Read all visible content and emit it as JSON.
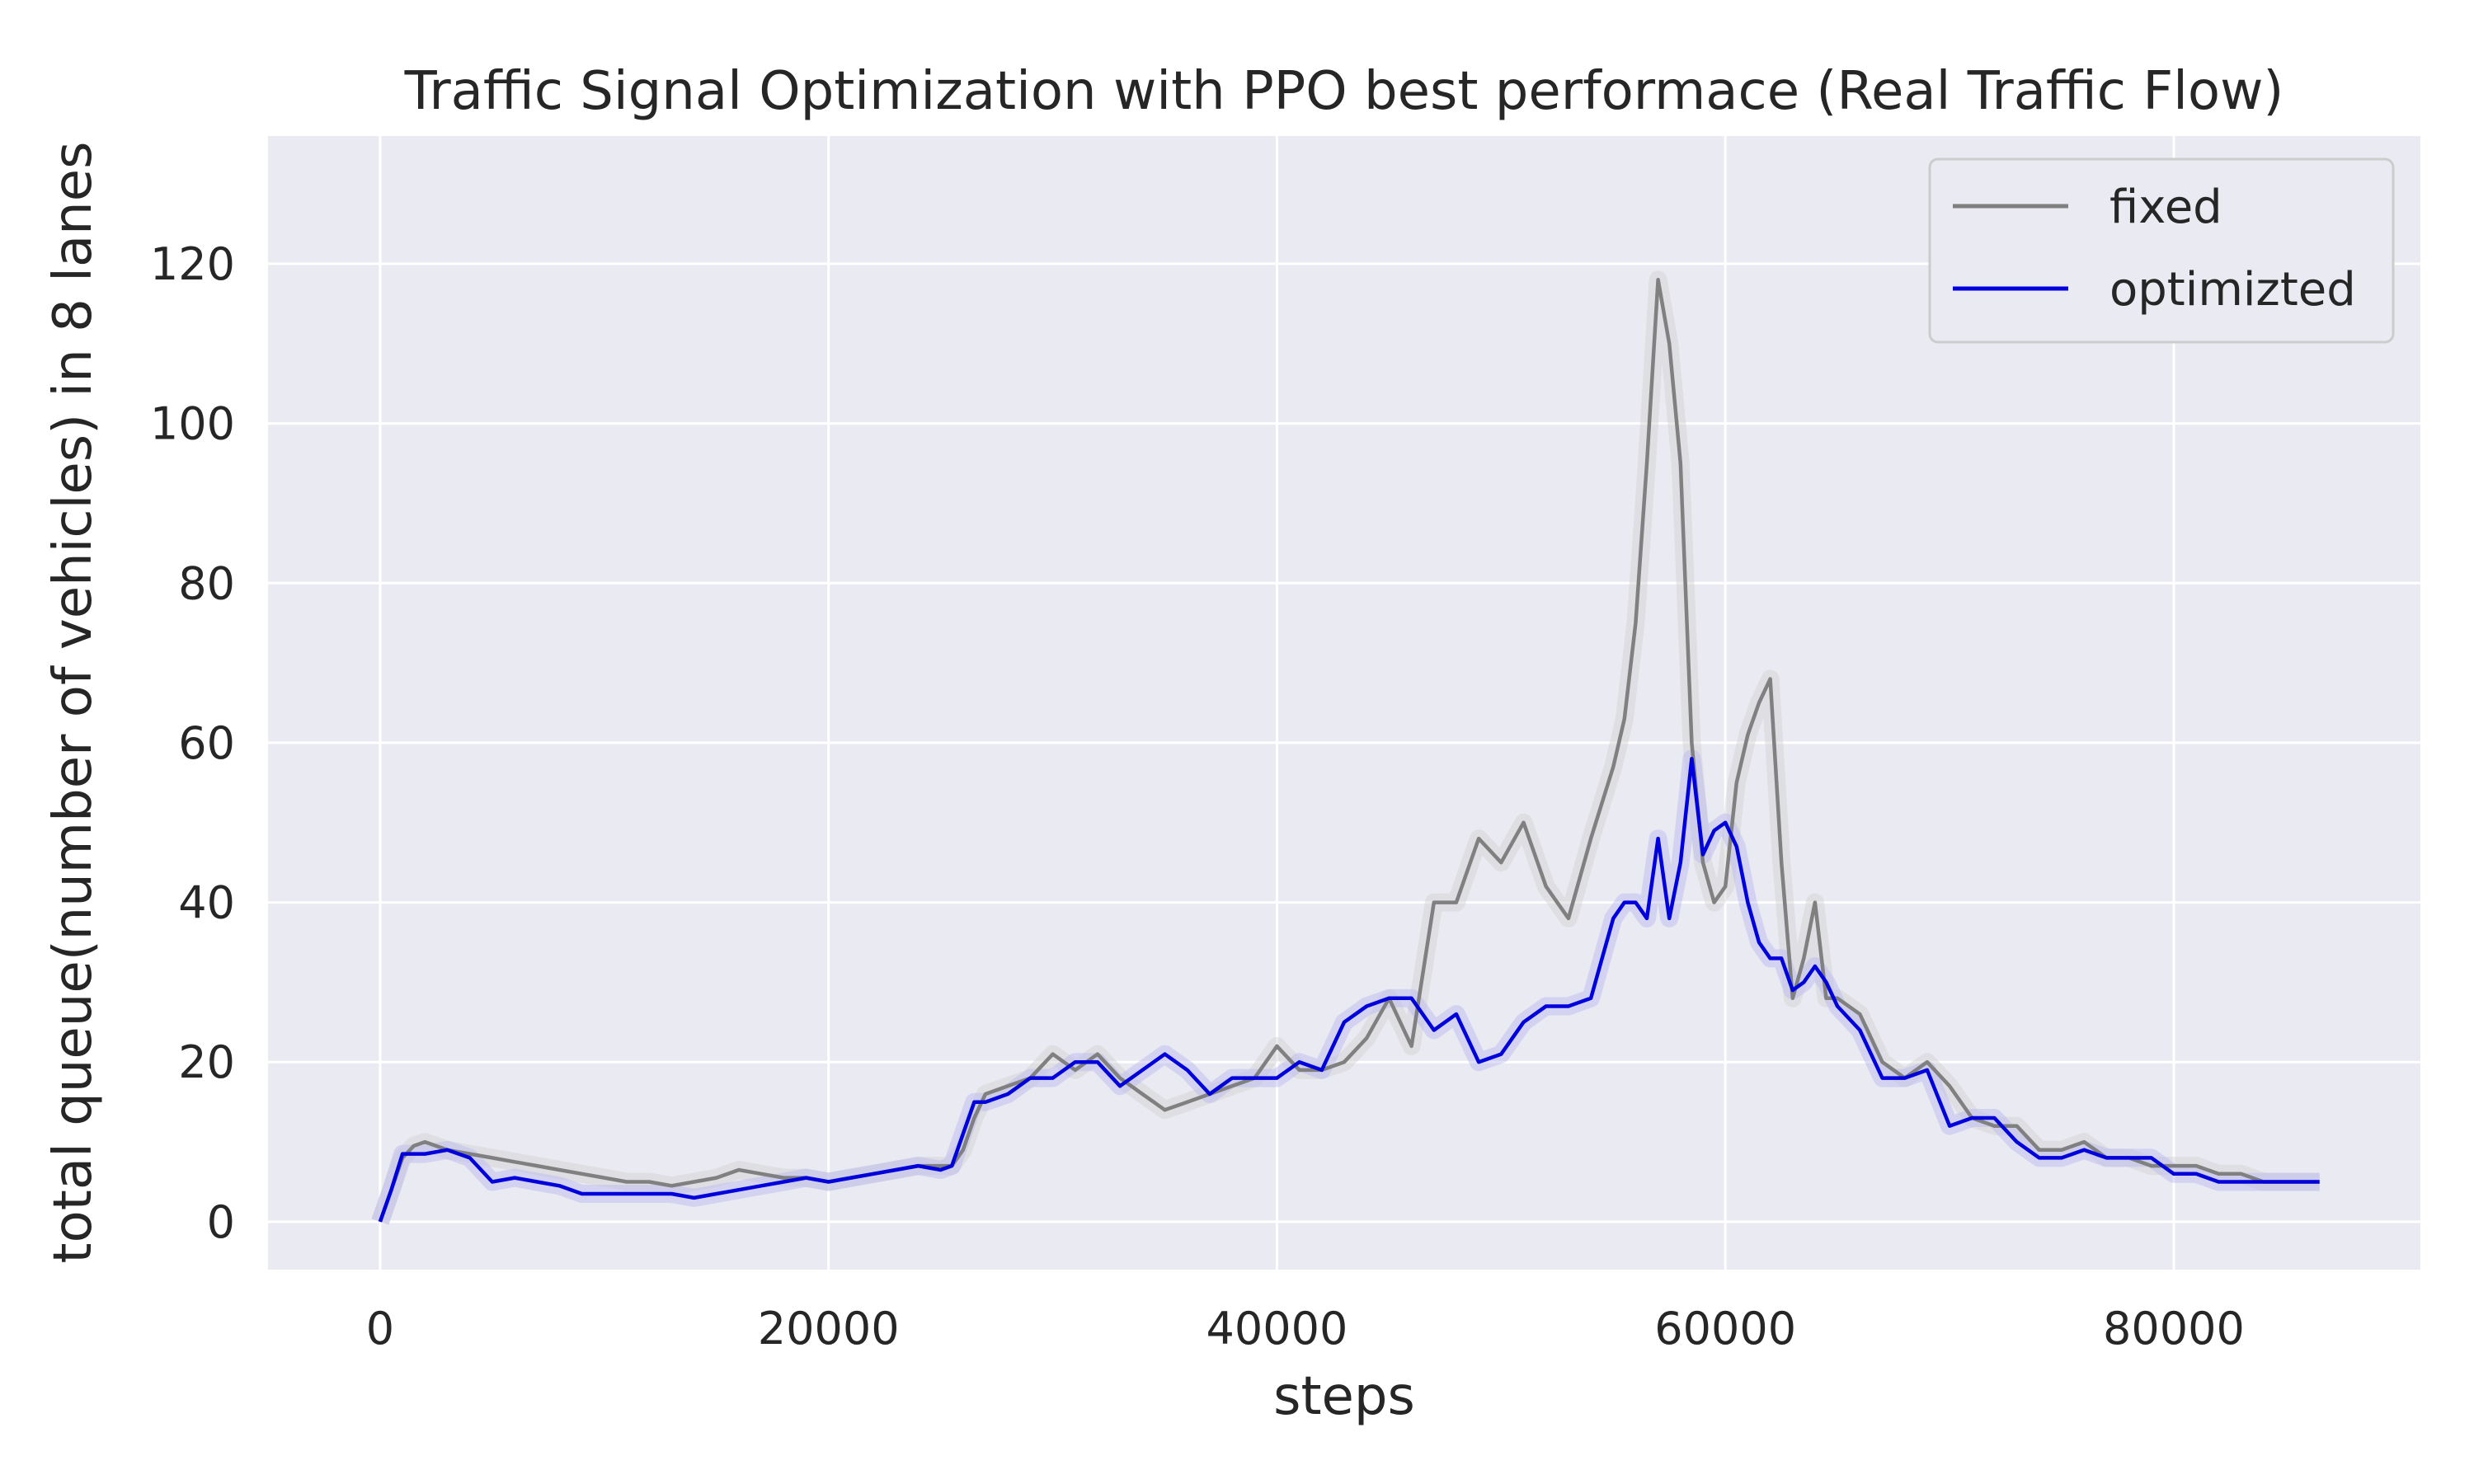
{
  "chart_data": {
    "type": "line",
    "title": "Traffic Signal Optimization with PPO best performace (Real Traffic Flow)",
    "xlabel": "steps",
    "ylabel": "total queue(number of vehicles) in 8 lanes",
    "xlim": [
      -5000,
      91000
    ],
    "ylim": [
      -6,
      136
    ],
    "xticks": [
      0,
      20000,
      40000,
      60000,
      80000
    ],
    "yticks": [
      0,
      20,
      40,
      60,
      80,
      100,
      120
    ],
    "grid": true,
    "legend_position": "top-right",
    "background_color": "#eaeaf2",
    "series": [
      {
        "name": "fixed",
        "color": "#808080",
        "x": [
          0,
          500,
          1000,
          1500,
          2000,
          3000,
          4000,
          5000,
          6000,
          7000,
          8000,
          9000,
          10000,
          11000,
          12000,
          13000,
          14000,
          15000,
          16000,
          17000,
          18000,
          19000,
          20000,
          21000,
          22000,
          23000,
          24000,
          25000,
          25500,
          26000,
          26500,
          27000,
          28000,
          29000,
          30000,
          31000,
          32000,
          33000,
          34000,
          35000,
          36000,
          37000,
          38000,
          39000,
          40000,
          41000,
          42000,
          43000,
          44000,
          45000,
          46000,
          47000,
          48000,
          49000,
          50000,
          51000,
          52000,
          53000,
          54000,
          55000,
          55500,
          56000,
          56500,
          57000,
          57500,
          58000,
          58500,
          59000,
          59500,
          60000,
          60500,
          61000,
          61500,
          62000,
          62500,
          63000,
          63500,
          64000,
          64500,
          65000,
          66000,
          67000,
          68000,
          69000,
          70000,
          71000,
          72000,
          73000,
          74000,
          75000,
          76000,
          77000,
          78000,
          79000,
          80000,
          81000,
          82000,
          83000,
          84000,
          85000,
          86500
        ],
        "y": [
          0,
          4,
          8,
          9.5,
          10,
          9,
          8.5,
          8,
          7.5,
          7,
          6.5,
          6,
          5.5,
          5,
          5,
          4.5,
          5,
          5.5,
          6.5,
          6,
          5.5,
          5.5,
          5,
          5.5,
          6,
          6.5,
          7,
          7,
          7,
          9,
          13,
          16,
          17,
          18,
          21,
          19,
          21,
          18,
          16,
          14,
          15,
          16,
          17,
          18,
          22,
          19,
          19,
          20,
          23,
          28,
          22,
          40,
          40,
          48,
          45,
          50,
          42,
          38,
          48,
          57,
          63,
          75,
          95,
          118,
          110,
          95,
          60,
          45,
          40,
          42,
          55,
          61,
          65,
          68,
          45,
          28,
          33,
          40,
          28,
          28,
          26,
          20,
          18,
          20,
          17,
          13,
          12,
          12,
          9,
          9,
          10,
          8,
          8,
          7,
          7,
          7,
          6,
          6,
          5,
          5,
          5
        ]
      },
      {
        "name": "optimizted",
        "color": "#0000dd",
        "x": [
          0,
          500,
          1000,
          1500,
          2000,
          3000,
          4000,
          5000,
          6000,
          7000,
          8000,
          9000,
          10000,
          11000,
          12000,
          13000,
          14000,
          15000,
          16000,
          17000,
          18000,
          19000,
          20000,
          21000,
          22000,
          23000,
          24000,
          25000,
          25500,
          26000,
          26500,
          27000,
          28000,
          29000,
          30000,
          31000,
          32000,
          33000,
          34000,
          35000,
          36000,
          37000,
          38000,
          39000,
          40000,
          41000,
          42000,
          43000,
          44000,
          45000,
          46000,
          47000,
          48000,
          49000,
          50000,
          51000,
          52000,
          53000,
          54000,
          55000,
          55500,
          56000,
          56500,
          57000,
          57500,
          58000,
          58500,
          59000,
          59500,
          60000,
          60500,
          61000,
          61500,
          62000,
          62500,
          63000,
          63500,
          64000,
          64500,
          65000,
          66000,
          67000,
          68000,
          69000,
          70000,
          71000,
          72000,
          73000,
          74000,
          75000,
          76000,
          77000,
          78000,
          79000,
          80000,
          81000,
          82000,
          83000,
          84000,
          85000,
          86500
        ],
        "y": [
          0,
          4,
          8.5,
          8.5,
          8.5,
          9,
          8,
          5,
          5.5,
          5,
          4.5,
          3.5,
          3.5,
          3.5,
          3.5,
          3.5,
          3,
          3.5,
          4,
          4.5,
          5,
          5.5,
          5,
          5.5,
          6,
          6.5,
          7,
          6.5,
          7,
          11,
          15,
          15,
          16,
          18,
          18,
          20,
          20,
          17,
          19,
          21,
          19,
          16,
          18,
          18,
          18,
          20,
          19,
          25,
          27,
          28,
          28,
          24,
          26,
          20,
          21,
          25,
          27,
          27,
          28,
          38,
          40,
          40,
          38,
          48,
          38,
          45,
          58,
          46,
          49,
          50,
          47,
          40,
          35,
          33,
          33,
          29,
          30,
          32,
          30,
          27,
          24,
          18,
          18,
          19,
          12,
          13,
          13,
          10,
          8,
          8,
          9,
          8,
          8,
          8,
          6,
          6,
          5,
          5,
          5,
          5,
          5
        ]
      }
    ]
  }
}
